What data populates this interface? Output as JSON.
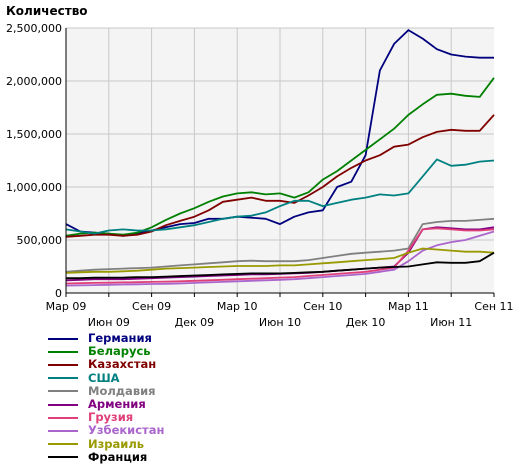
{
  "chart_data": {
    "type": "line",
    "ylabel": "Количество",
    "xlabel": "",
    "ylim": [
      0,
      2500000
    ],
    "yticks": [
      0,
      500000,
      1000000,
      1500000,
      2000000,
      2500000
    ],
    "ytick_labels": [
      "0",
      "500,000",
      "1,000,000",
      "1,500,000",
      "2,000,000",
      "2,500,000"
    ],
    "grid": true,
    "legend_position": "bottom-left",
    "x": [
      "2009-03",
      "2009-04",
      "2009-05",
      "2009-06",
      "2009-07",
      "2009-08",
      "2009-09",
      "2009-10",
      "2009-11",
      "2009-12",
      "2010-01",
      "2010-02",
      "2010-03",
      "2010-04",
      "2010-05",
      "2010-06",
      "2010-07",
      "2010-08",
      "2010-09",
      "2010-10",
      "2010-11",
      "2010-12",
      "2011-01",
      "2011-02",
      "2011-03",
      "2011-04",
      "2011-05",
      "2011-06",
      "2011-07",
      "2011-08",
      "2011-09"
    ],
    "xticks": [
      {
        "x": "2009-03",
        "label": "Мар 09",
        "row": 0
      },
      {
        "x": "2009-06",
        "label": "Июн 09",
        "row": 1
      },
      {
        "x": "2009-09",
        "label": "Сен 09",
        "row": 0
      },
      {
        "x": "2009-12",
        "label": "Дек 09",
        "row": 1
      },
      {
        "x": "2010-03",
        "label": "Мар 10",
        "row": 0
      },
      {
        "x": "2010-06",
        "label": "Июн 10",
        "row": 1
      },
      {
        "x": "2010-09",
        "label": "Сен 10",
        "row": 0
      },
      {
        "x": "2010-12",
        "label": "Дек 10",
        "row": 1
      },
      {
        "x": "2011-03",
        "label": "Мар 11",
        "row": 0
      },
      {
        "x": "2011-06",
        "label": "Июн 11",
        "row": 1
      },
      {
        "x": "2011-09",
        "label": "Сен 11",
        "row": 0
      }
    ],
    "series": [
      {
        "name": "Германия",
        "color": "#00007f",
        "values": [
          650000,
          580000,
          570000,
          560000,
          540000,
          560000,
          590000,
          620000,
          650000,
          660000,
          700000,
          700000,
          720000,
          710000,
          700000,
          650000,
          720000,
          760000,
          780000,
          1000000,
          1050000,
          1300000,
          2100000,
          2350000,
          2480000,
          2400000,
          2300000,
          2250000,
          2230000,
          2220000,
          2220000
        ]
      },
      {
        "name": "Беларусь",
        "color": "#008000",
        "values": [
          540000,
          560000,
          570000,
          560000,
          550000,
          570000,
          620000,
          690000,
          750000,
          800000,
          860000,
          910000,
          940000,
          950000,
          930000,
          940000,
          900000,
          950000,
          1070000,
          1150000,
          1250000,
          1350000,
          1450000,
          1550000,
          1680000,
          1780000,
          1870000,
          1880000,
          1860000,
          1850000,
          2030000
        ]
      },
      {
        "name": "Казахстан",
        "color": "#800000",
        "values": [
          530000,
          540000,
          550000,
          550000,
          540000,
          550000,
          580000,
          640000,
          680000,
          720000,
          780000,
          860000,
          880000,
          900000,
          870000,
          870000,
          850000,
          920000,
          1000000,
          1100000,
          1180000,
          1250000,
          1300000,
          1380000,
          1400000,
          1470000,
          1520000,
          1540000,
          1530000,
          1530000,
          1680000
        ]
      },
      {
        "name": "США",
        "color": "#008080",
        "values": [
          600000,
          580000,
          560000,
          590000,
          600000,
          590000,
          590000,
          600000,
          620000,
          640000,
          670000,
          700000,
          720000,
          730000,
          760000,
          820000,
          870000,
          870000,
          820000,
          850000,
          880000,
          900000,
          930000,
          920000,
          940000,
          1100000,
          1260000,
          1200000,
          1210000,
          1240000,
          1250000
        ]
      },
      {
        "name": "Молдавия",
        "color": "#808080",
        "values": [
          200000,
          210000,
          220000,
          225000,
          230000,
          235000,
          240000,
          250000,
          260000,
          270000,
          280000,
          290000,
          300000,
          305000,
          300000,
          300000,
          300000,
          310000,
          330000,
          350000,
          370000,
          380000,
          390000,
          400000,
          420000,
          650000,
          670000,
          680000,
          680000,
          690000,
          700000
        ]
      },
      {
        "name": "Армения",
        "color": "#800080",
        "values": [
          120000,
          125000,
          130000,
          130000,
          130000,
          135000,
          140000,
          145000,
          150000,
          155000,
          160000,
          165000,
          170000,
          175000,
          175000,
          180000,
          185000,
          190000,
          200000,
          210000,
          220000,
          230000,
          240000,
          250000,
          380000,
          600000,
          620000,
          610000,
          600000,
          600000,
          620000
        ]
      },
      {
        "name": "Грузия",
        "color": "#e0407a",
        "values": [
          90000,
          92000,
          95000,
          97000,
          100000,
          102000,
          105000,
          108000,
          110000,
          115000,
          120000,
          125000,
          130000,
          135000,
          140000,
          145000,
          150000,
          160000,
          170000,
          180000,
          190000,
          200000,
          220000,
          240000,
          400000,
          600000,
          610000,
          600000,
          590000,
          590000,
          600000
        ]
      },
      {
        "name": "Узбекистан",
        "color": "#aa66cc",
        "values": [
          70000,
          72000,
          75000,
          77000,
          80000,
          82000,
          85000,
          87000,
          90000,
          95000,
          100000,
          105000,
          110000,
          115000,
          120000,
          125000,
          130000,
          140000,
          150000,
          160000,
          170000,
          180000,
          200000,
          220000,
          300000,
          400000,
          450000,
          480000,
          500000,
          540000,
          580000
        ]
      },
      {
        "name": "Израиль",
        "color": "#999900",
        "values": [
          190000,
          195000,
          200000,
          200000,
          205000,
          210000,
          220000,
          230000,
          235000,
          240000,
          245000,
          250000,
          255000,
          255000,
          255000,
          260000,
          260000,
          270000,
          280000,
          290000,
          300000,
          310000,
          320000,
          330000,
          380000,
          420000,
          410000,
          400000,
          390000,
          390000,
          380000
        ]
      },
      {
        "name": "Франция",
        "color": "#000000",
        "values": [
          140000,
          140000,
          145000,
          145000,
          145000,
          150000,
          150000,
          155000,
          160000,
          165000,
          170000,
          175000,
          180000,
          185000,
          185000,
          185000,
          190000,
          195000,
          200000,
          210000,
          220000,
          230000,
          240000,
          245000,
          250000,
          270000,
          290000,
          285000,
          285000,
          300000,
          380000
        ]
      }
    ]
  }
}
